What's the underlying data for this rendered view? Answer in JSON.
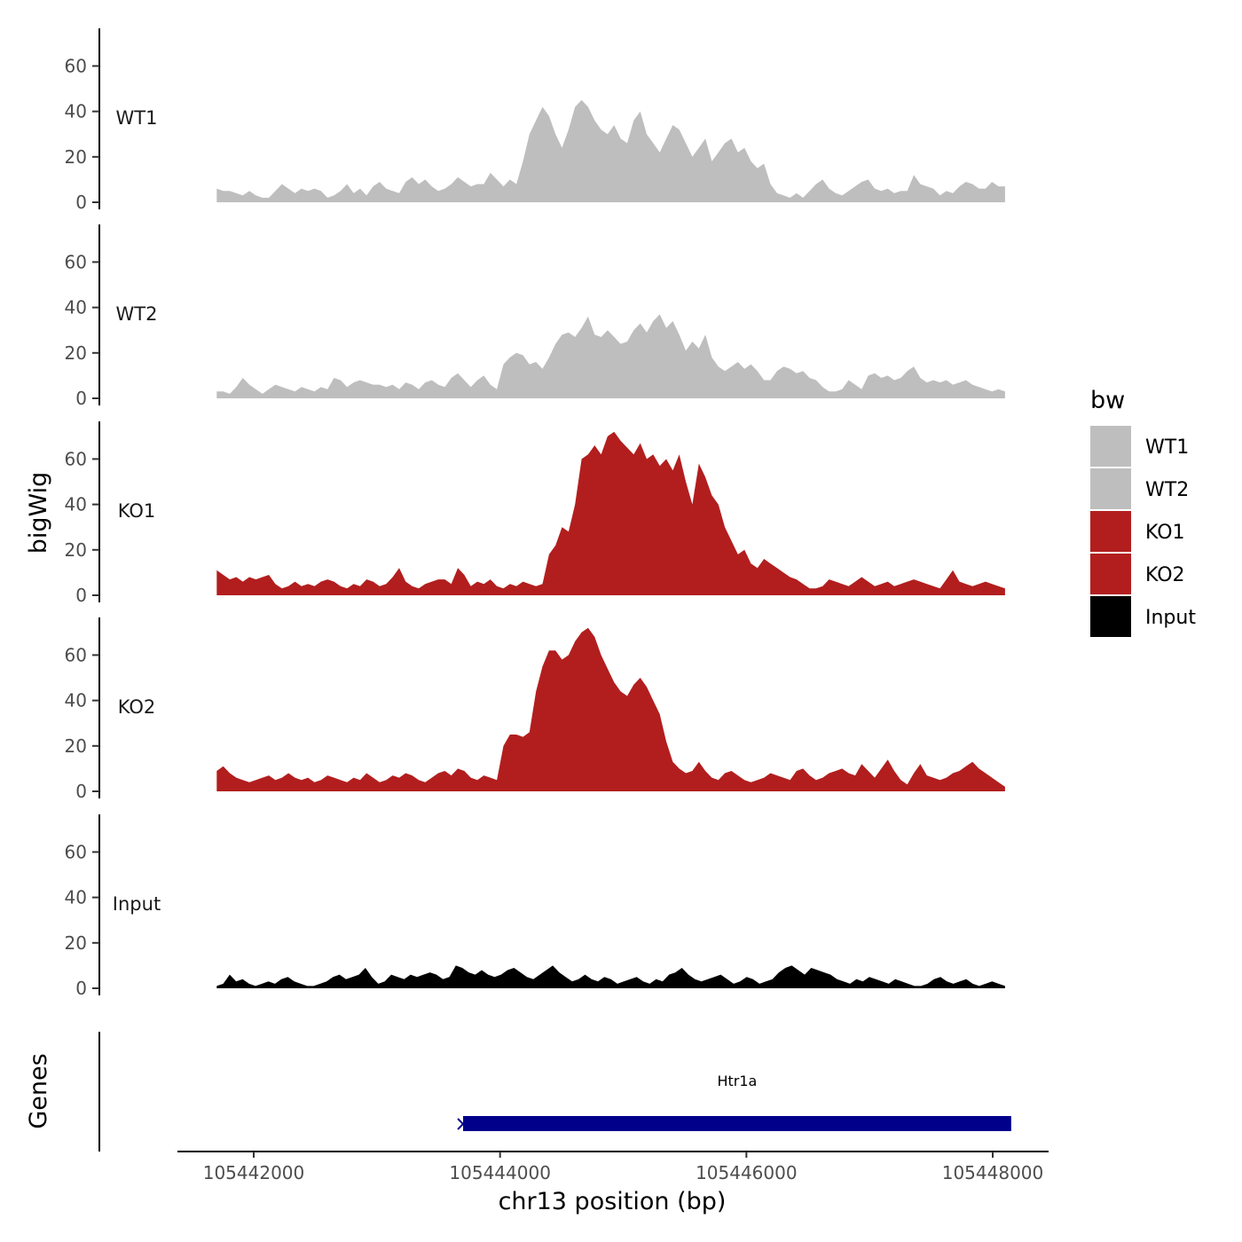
{
  "chart_data": {
    "type": "area",
    "y_axis_title": "bigWig",
    "x_axis_title": "chr13 position (bp)",
    "gene_track_title": "Genes",
    "y_ticks": [
      0,
      20,
      40,
      60
    ],
    "ylim": [
      0,
      76
    ],
    "x_ticks": [
      105442000,
      105444000,
      105446000,
      105448000
    ],
    "xlim": [
      105441000,
      105448450
    ],
    "data_range": [
      105441700,
      105448100
    ],
    "legend": {
      "title": "bw",
      "entries": [
        {
          "label": "WT1",
          "color": "#bebebe"
        },
        {
          "label": "WT2",
          "color": "#bebebe"
        },
        {
          "label": "KO1",
          "color": "#b21e1e"
        },
        {
          "label": "KO2",
          "color": "#b21e1e"
        },
        {
          "label": "Input",
          "color": "#000000"
        }
      ]
    },
    "series": [
      {
        "name": "WT1",
        "color": "#bebebe",
        "values": [
          6,
          5,
          5,
          4,
          3,
          5,
          3,
          2,
          2,
          5,
          8,
          6,
          4,
          6,
          5,
          6,
          5,
          2,
          3,
          5,
          8,
          4,
          6,
          3,
          7,
          9,
          6,
          5,
          4,
          9,
          11,
          8,
          10,
          7,
          5,
          6,
          8,
          11,
          9,
          7,
          8,
          8,
          13,
          10,
          7,
          10,
          8,
          18,
          30,
          36,
          42,
          38,
          30,
          24,
          32,
          42,
          45,
          42,
          36,
          32,
          30,
          34,
          28,
          26,
          36,
          40,
          30,
          26,
          22,
          28,
          34,
          32,
          26,
          20,
          24,
          28,
          18,
          22,
          26,
          28,
          22,
          24,
          18,
          15,
          17,
          8,
          4,
          3,
          2,
          4,
          2,
          5,
          8,
          10,
          6,
          4,
          3,
          5,
          7,
          9,
          10,
          6,
          5,
          6,
          4,
          5,
          5,
          12,
          8,
          7,
          6,
          3,
          5,
          4,
          7,
          9,
          8,
          6,
          6,
          9,
          7,
          7
        ]
      },
      {
        "name": "WT2",
        "color": "#bebebe",
        "values": [
          3,
          3,
          2,
          5,
          9,
          6,
          4,
          2,
          4,
          6,
          5,
          4,
          3,
          5,
          4,
          3,
          5,
          4,
          9,
          8,
          5,
          7,
          8,
          7,
          6,
          6,
          5,
          6,
          4,
          7,
          6,
          4,
          7,
          8,
          6,
          5,
          9,
          11,
          8,
          5,
          8,
          10,
          6,
          4,
          15,
          18,
          20,
          19,
          15,
          16,
          13,
          18,
          24,
          28,
          29,
          27,
          31,
          36,
          28,
          27,
          30,
          27,
          24,
          25,
          30,
          33,
          29,
          34,
          37,
          31,
          34,
          28,
          21,
          25,
          22,
          28,
          18,
          14,
          12,
          14,
          16,
          13,
          15,
          12,
          8,
          8,
          12,
          14,
          13,
          11,
          12,
          9,
          8,
          5,
          3,
          3,
          4,
          8,
          6,
          4,
          10,
          11,
          9,
          10,
          8,
          9,
          12,
          14,
          9,
          7,
          8,
          7,
          8,
          6,
          7,
          8,
          6,
          5,
          4,
          3,
          4,
          3
        ]
      },
      {
        "name": "KO1",
        "color": "#b21e1e",
        "values": [
          11,
          9,
          7,
          8,
          6,
          8,
          7,
          8,
          9,
          5,
          3,
          4,
          6,
          4,
          5,
          4,
          6,
          7,
          6,
          4,
          3,
          5,
          4,
          7,
          6,
          4,
          5,
          8,
          12,
          6,
          4,
          3,
          5,
          6,
          7,
          7,
          5,
          12,
          9,
          4,
          6,
          5,
          7,
          4,
          3,
          5,
          4,
          6,
          5,
          4,
          5,
          18,
          22,
          30,
          28,
          40,
          60,
          62,
          66,
          62,
          70,
          72,
          68,
          65,
          62,
          67,
          60,
          62,
          57,
          60,
          55,
          62,
          50,
          40,
          58,
          52,
          44,
          40,
          30,
          24,
          18,
          20,
          14,
          12,
          16,
          14,
          12,
          10,
          8,
          7,
          5,
          3,
          3,
          4,
          7,
          6,
          5,
          4,
          6,
          8,
          6,
          4,
          5,
          6,
          4,
          5,
          6,
          7,
          6,
          5,
          4,
          3,
          7,
          11,
          6,
          5,
          4,
          5,
          6,
          5,
          4,
          3
        ]
      },
      {
        "name": "KO2",
        "color": "#b21e1e",
        "values": [
          9,
          11,
          8,
          6,
          5,
          4,
          5,
          6,
          7,
          5,
          6,
          8,
          6,
          5,
          6,
          4,
          5,
          7,
          6,
          5,
          4,
          6,
          5,
          8,
          6,
          4,
          5,
          7,
          6,
          8,
          7,
          5,
          4,
          6,
          8,
          9,
          7,
          10,
          9,
          6,
          5,
          7,
          6,
          5,
          20,
          25,
          25,
          24,
          26,
          44,
          55,
          62,
          62,
          58,
          60,
          66,
          70,
          72,
          68,
          60,
          54,
          48,
          44,
          42,
          47,
          50,
          46,
          40,
          34,
          22,
          13,
          10,
          8,
          9,
          13,
          9,
          6,
          5,
          8,
          9,
          7,
          5,
          4,
          5,
          6,
          8,
          7,
          6,
          5,
          9,
          10,
          7,
          5,
          6,
          8,
          9,
          10,
          8,
          7,
          12,
          9,
          6,
          10,
          14,
          9,
          5,
          3,
          8,
          12,
          7,
          6,
          5,
          6,
          8,
          9,
          11,
          13,
          10,
          8,
          6,
          4,
          2
        ]
      },
      {
        "name": "Input",
        "color": "#000000",
        "values": [
          1,
          2,
          6,
          3,
          4,
          2,
          1,
          2,
          3,
          2,
          4,
          5,
          3,
          2,
          1,
          1,
          2,
          3,
          5,
          6,
          4,
          5,
          6,
          9,
          5,
          2,
          3,
          6,
          5,
          4,
          6,
          5,
          6,
          7,
          6,
          4,
          5,
          10,
          9,
          7,
          6,
          8,
          6,
          5,
          6,
          8,
          9,
          7,
          5,
          4,
          6,
          8,
          10,
          7,
          5,
          3,
          4,
          6,
          4,
          3,
          5,
          4,
          2,
          3,
          4,
          5,
          3,
          2,
          4,
          3,
          6,
          7,
          9,
          6,
          4,
          3,
          4,
          5,
          6,
          4,
          2,
          3,
          5,
          4,
          2,
          3,
          4,
          7,
          9,
          10,
          8,
          6,
          9,
          8,
          7,
          6,
          4,
          3,
          2,
          4,
          3,
          5,
          4,
          3,
          2,
          4,
          3,
          2,
          1,
          1,
          2,
          4,
          5,
          3,
          2,
          3,
          4,
          2,
          1,
          2,
          3,
          2,
          1
        ]
      }
    ],
    "genes": [
      {
        "name": "Htr1a",
        "start": 105443700,
        "end": 105448150,
        "color": "#00008b"
      }
    ]
  }
}
